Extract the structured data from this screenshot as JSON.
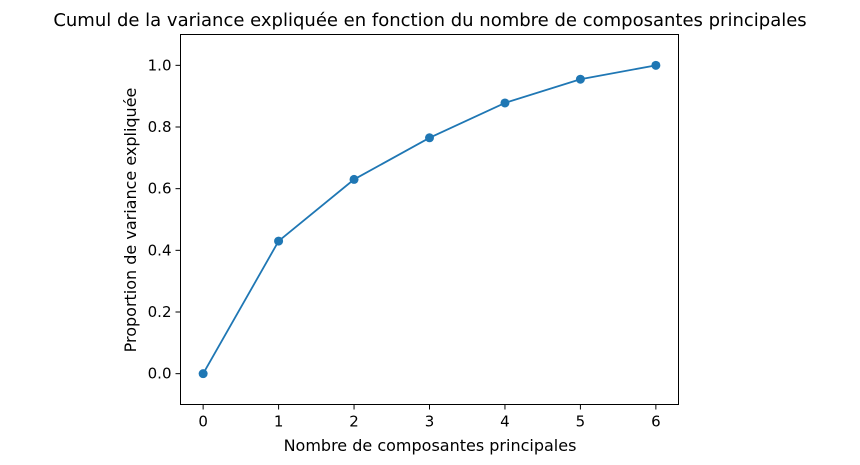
{
  "chart_data": {
    "type": "line",
    "title": "Cumul de la variance expliquée en fonction du nombre de composantes principales",
    "xlabel": "Nombre de composantes principales",
    "ylabel": "Proportion de variance expliquée",
    "x": [
      0,
      1,
      2,
      3,
      4,
      5,
      6
    ],
    "series": [
      {
        "values": [
          0.0,
          0.43,
          0.63,
          0.765,
          0.878,
          0.955,
          1.0
        ],
        "color": "#1f77b4",
        "marker": "circle"
      }
    ],
    "xlim": [
      -0.3,
      6.3
    ],
    "ylim": [
      -0.1,
      1.1
    ],
    "xticks": [
      "0",
      "1",
      "2",
      "3",
      "4",
      "5",
      "6"
    ],
    "yticks": [
      "0.0",
      "0.2",
      "0.4",
      "0.6",
      "0.8",
      "1.0"
    ],
    "grid": false,
    "legend": false
  }
}
